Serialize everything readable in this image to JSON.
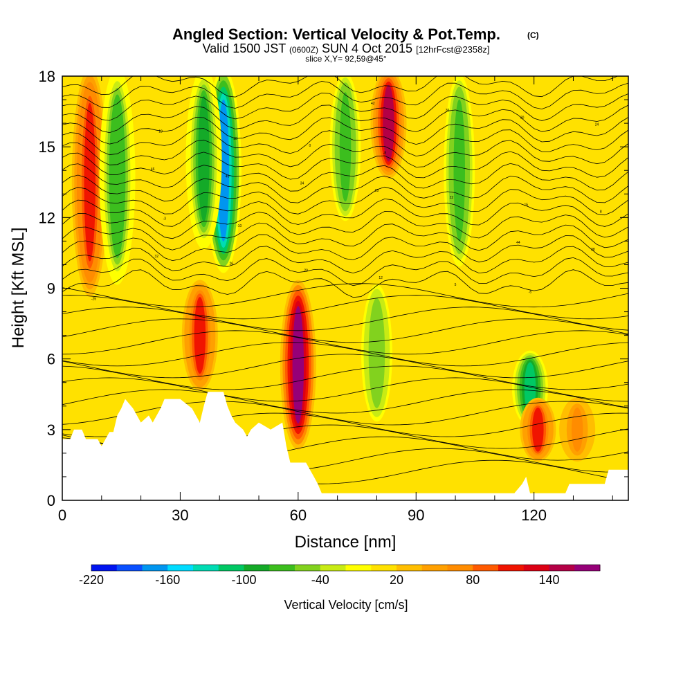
{
  "chart_data": {
    "type": "heatmap",
    "title": "Angled Section: Vertical Velocity & Pot.Temp.",
    "title_units": "(C)",
    "subtitle": {
      "valid": "Valid 1500 JST",
      "utc": "(0600Z)",
      "date": "SUN 4 Oct 2015",
      "forecast": "[12hrFcst@2358z]"
    },
    "slice": "slice X,Y= 92,59@45°",
    "xlabel": "Distance [nm]",
    "ylabel": "Height [Kft MSL]",
    "xlim": [
      0,
      144
    ],
    "ylim": [
      0,
      18
    ],
    "x_ticks": [
      0,
      30,
      60,
      90,
      120
    ],
    "y_ticks": [
      0,
      3,
      6,
      9,
      12,
      15,
      18
    ],
    "colorbar": {
      "label": "Vertical Velocity [cm/s]",
      "tick_labels": [
        "-220",
        "-160",
        "-100",
        "-40",
        "20",
        "80",
        "140"
      ],
      "tick_values": [
        -220,
        -160,
        -100,
        -40,
        20,
        80,
        140
      ],
      "bins": [
        -220,
        -200,
        -180,
        -160,
        -140,
        -120,
        -100,
        -80,
        -60,
        -40,
        -20,
        0,
        20,
        40,
        60,
        80,
        100,
        120,
        140,
        160,
        180
      ],
      "colors": [
        "#0014f0",
        "#0a50ff",
        "#0096f0",
        "#00dcff",
        "#00dcb4",
        "#00c864",
        "#14aa28",
        "#3cbe1e",
        "#82d21e",
        "#c8eb14",
        "#ffff00",
        "#ffe100",
        "#ffbe00",
        "#ffa000",
        "#ff8c00",
        "#ff5a00",
        "#f01400",
        "#dc0014",
        "#b40046",
        "#960078"
      ]
    },
    "background_velocity": 15,
    "updraft_downdraft_bands": [
      {
        "x": 7,
        "z_min": 9,
        "z_max": 18,
        "velocity": 110
      },
      {
        "x": 14,
        "z_min": 9.5,
        "z_max": 18,
        "velocity": -80
      },
      {
        "x": 35,
        "z_min": 5,
        "z_max": 9,
        "velocity": 100
      },
      {
        "x": 41,
        "z_min": 10,
        "z_max": 18,
        "velocity": -170
      },
      {
        "x": 36,
        "z_min": 11,
        "z_max": 18,
        "velocity": -90
      },
      {
        "x": 60,
        "z_min": 2.5,
        "z_max": 9,
        "velocity": 160
      },
      {
        "x": 72,
        "z_min": 12,
        "z_max": 18,
        "velocity": -70
      },
      {
        "x": 80,
        "z_min": 3.5,
        "z_max": 9,
        "velocity": -60
      },
      {
        "x": 83,
        "z_min": 14,
        "z_max": 18,
        "velocity": 140
      },
      {
        "x": 101,
        "z_min": 10,
        "z_max": 18,
        "velocity": -70
      },
      {
        "x": 119,
        "z_min": 3.5,
        "z_max": 6,
        "velocity": -120
      },
      {
        "x": 121,
        "z_min": 2,
        "z_max": 4,
        "velocity": 100
      },
      {
        "x": 131,
        "z_min": 2,
        "z_max": 4,
        "velocity": 60
      }
    ],
    "terrain": [
      [
        0,
        2.6
      ],
      [
        2,
        2.6
      ],
      [
        3,
        3.0
      ],
      [
        5,
        3.0
      ],
      [
        6,
        2.6
      ],
      [
        9,
        2.6
      ],
      [
        10,
        2.3
      ],
      [
        11,
        2.6
      ],
      [
        12,
        2.9
      ],
      [
        13,
        2.9
      ],
      [
        14,
        3.6
      ],
      [
        15,
        3.9
      ],
      [
        16,
        4.3
      ],
      [
        18,
        3.9
      ],
      [
        19,
        3.6
      ],
      [
        20,
        3.3
      ],
      [
        22,
        3.6
      ],
      [
        23,
        3.3
      ],
      [
        25,
        3.9
      ],
      [
        26,
        4.3
      ],
      [
        30,
        4.3
      ],
      [
        33,
        3.9
      ],
      [
        34,
        3.6
      ],
      [
        35,
        3.3
      ],
      [
        36,
        4.0
      ],
      [
        37,
        4.6
      ],
      [
        41,
        4.6
      ],
      [
        42,
        4.0
      ],
      [
        43,
        3.6
      ],
      [
        44,
        3.3
      ],
      [
        46,
        3.0
      ],
      [
        47,
        2.7
      ],
      [
        48,
        3.0
      ],
      [
        50,
        3.3
      ],
      [
        53,
        3.0
      ],
      [
        56,
        3.3
      ],
      [
        57,
        2.3
      ],
      [
        58,
        1.6
      ],
      [
        62,
        1.6
      ],
      [
        63,
        1.3
      ],
      [
        64,
        1.0
      ],
      [
        65,
        0.7
      ],
      [
        66,
        0.3
      ],
      [
        115,
        0.3
      ],
      [
        117,
        0.7
      ],
      [
        118,
        1.0
      ],
      [
        119,
        0.3
      ],
      [
        128,
        0.3
      ],
      [
        129,
        0.7
      ],
      [
        138,
        0.7
      ],
      [
        139,
        1.3
      ],
      [
        144,
        1.3
      ]
    ],
    "contour_labels": [
      "-25",
      "-10",
      "-8",
      "-5",
      "-3",
      "0",
      "5",
      "8",
      "10",
      "12",
      "15",
      "18",
      "20",
      "22",
      "24",
      "26",
      "28",
      "30",
      "32",
      "34",
      "36",
      "38",
      "40",
      "42",
      "44",
      "46"
    ]
  }
}
